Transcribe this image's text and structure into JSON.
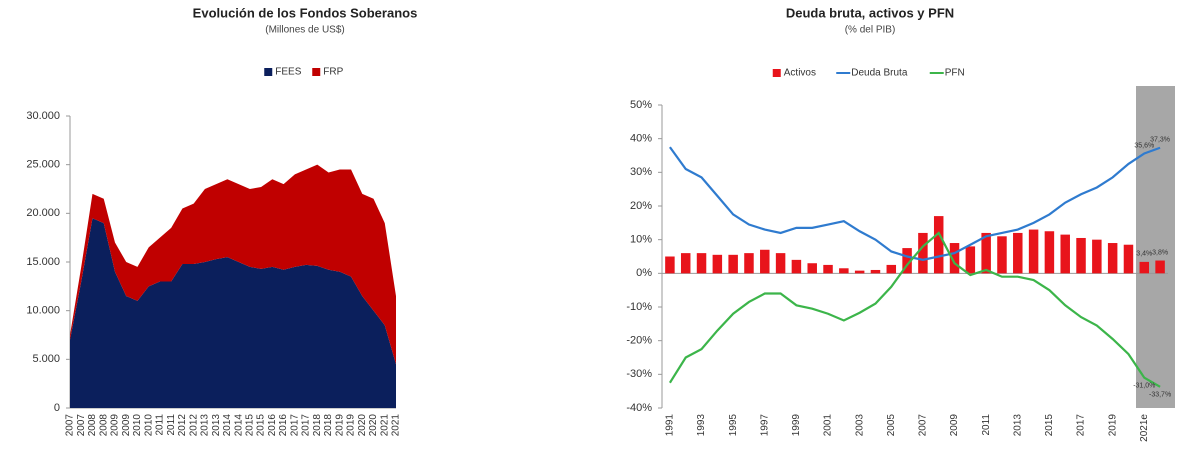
{
  "chart_data": [
    {
      "type": "area",
      "stacked": true,
      "title": "Evolución de los Fondos Soberanos",
      "subtitle": "(Millones de US$)",
      "categories": [
        "2007",
        "2007",
        "2008",
        "2008",
        "2009",
        "2009",
        "2010",
        "2010",
        "2011",
        "2011",
        "2012",
        "2012",
        "2013",
        "2013",
        "2014",
        "2014",
        "2015",
        "2015",
        "2016",
        "2016",
        "2017",
        "2017",
        "2018",
        "2018",
        "2019",
        "2019",
        "2020",
        "2020",
        "2021",
        "2021"
      ],
      "series": [
        {
          "name": "FEES",
          "color": "#0b1f5c",
          "values": [
            7000,
            13000,
            19500,
            19000,
            14000,
            11500,
            11000,
            12500,
            13000,
            13000,
            14800,
            14800,
            15000,
            15300,
            15500,
            15000,
            14500,
            14300,
            14500,
            14200,
            14500,
            14700,
            14600,
            14200,
            14000,
            13500,
            11500,
            10000,
            8500,
            4500
          ]
        },
        {
          "name": "FRP",
          "color": "#c00000",
          "values": [
            500,
            1500,
            2500,
            2500,
            3000,
            3500,
            3500,
            4000,
            4500,
            5500,
            5700,
            6200,
            7500,
            7700,
            8000,
            8000,
            8000,
            8400,
            9000,
            8800,
            9500,
            9800,
            10400,
            10000,
            10500,
            11000,
            10500,
            11500,
            10500,
            7000
          ]
        }
      ],
      "ylim": [
        0,
        30000
      ],
      "yticks": [
        0,
        {
          "value": 5000,
          "label": "5.000"
        },
        {
          "value": 10000,
          "label": "10.000"
        },
        {
          "value": 15000,
          "label": "15.000"
        },
        {
          "value": 20000,
          "label": "20.000"
        },
        {
          "value": 25000,
          "label": "25.000"
        },
        {
          "value": 30000,
          "label": "30.000"
        }
      ],
      "legend": "top"
    },
    {
      "type": "combo",
      "title": "Deuda bruta, activos y PFN",
      "subtitle": "(% del PIB)",
      "categories": [
        "1991",
        null,
        "1993",
        null,
        "1995",
        null,
        "1997",
        null,
        "1999",
        null,
        "2001",
        null,
        "2003",
        null,
        "2005",
        null,
        "2007",
        null,
        "2009",
        null,
        "2011",
        null,
        "2013",
        null,
        "2015",
        null,
        "2017",
        null,
        "2019",
        null,
        "2021e",
        null
      ],
      "series": [
        {
          "name": "Activos",
          "type": "bar",
          "color": "#e8141b",
          "values": [
            5,
            6,
            6,
            5.5,
            5.5,
            6,
            7,
            6,
            4,
            3,
            2.5,
            1.5,
            0.8,
            1,
            2.5,
            7.5,
            12,
            17,
            9,
            8,
            12,
            11,
            12,
            13,
            12.5,
            11.5,
            10.5,
            10,
            9,
            8.5,
            3.4,
            3.8
          ],
          "value_labels": [
            null,
            null,
            null,
            null,
            null,
            null,
            null,
            null,
            null,
            null,
            null,
            null,
            null,
            null,
            null,
            null,
            null,
            null,
            null,
            null,
            null,
            null,
            null,
            null,
            null,
            null,
            null,
            null,
            null,
            null,
            "3,4%",
            "3,8%"
          ]
        },
        {
          "name": "Deuda Bruta",
          "type": "line",
          "color": "#2f7bcf",
          "values": [
            37.5,
            31,
            28.5,
            23,
            17.5,
            14.5,
            13,
            12,
            13.5,
            13.5,
            14.5,
            15.5,
            12.5,
            10,
            6.5,
            5,
            4,
            5,
            6,
            8.5,
            11,
            12,
            13,
            15,
            17.5,
            21,
            23.5,
            25.5,
            28.5,
            32.5,
            35.6,
            37.3
          ],
          "value_labels": [
            null,
            null,
            null,
            null,
            null,
            null,
            null,
            null,
            null,
            null,
            null,
            null,
            null,
            null,
            null,
            null,
            null,
            null,
            null,
            null,
            null,
            null,
            null,
            null,
            null,
            null,
            null,
            null,
            null,
            null,
            "35,6%",
            "37,3%"
          ]
        },
        {
          "name": "PFN",
          "type": "line",
          "color": "#3cb54a",
          "values": [
            -32.5,
            -25,
            -22.5,
            -17,
            -12,
            -8.5,
            -6,
            -6,
            -9.5,
            -10.5,
            -12,
            -14,
            -11.7,
            -9,
            -4,
            2.5,
            8,
            12,
            3,
            -0.5,
            1,
            -1,
            -1,
            -2,
            -5,
            -9.5,
            -13,
            -15.5,
            -19.5,
            -24,
            -31,
            -33.7
          ],
          "value_labels": [
            null,
            null,
            null,
            null,
            null,
            null,
            null,
            null,
            null,
            null,
            null,
            null,
            null,
            null,
            null,
            null,
            null,
            null,
            null,
            null,
            null,
            null,
            null,
            null,
            null,
            null,
            null,
            null,
            null,
            null,
            "-31,0%",
            "-33,7%"
          ]
        }
      ],
      "ylim": [
        -40,
        50
      ],
      "yticks": [
        {
          "value": -40,
          "label": "-40%"
        },
        {
          "value": -30,
          "label": "-30%"
        },
        {
          "value": -20,
          "label": "-20%"
        },
        {
          "value": -10,
          "label": "-10%"
        },
        {
          "value": 0,
          "label": "0%"
        },
        {
          "value": 10,
          "label": "10%"
        },
        {
          "value": 20,
          "label": "20%"
        },
        {
          "value": 30,
          "label": "30%"
        },
        {
          "value": 40,
          "label": "40%"
        },
        {
          "value": 50,
          "label": "50%"
        }
      ],
      "legend": "top"
    }
  ]
}
